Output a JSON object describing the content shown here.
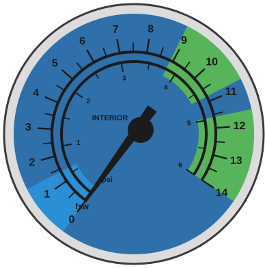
{
  "gauge": {
    "label_interior": "INTERIOR",
    "unit_outer": "fsw",
    "unit_inner": "psi",
    "outer_scale": {
      "unit": "fsw",
      "min": 0,
      "max": 14,
      "labels": [
        "0",
        "1",
        "2",
        "3",
        "4",
        "5",
        "6",
        "7",
        "8",
        "9",
        "10",
        "11",
        "12",
        "13",
        "14"
      ]
    },
    "inner_scale": {
      "unit": "psi",
      "min": 0,
      "max": 6,
      "labels": [
        "1",
        "2",
        "3",
        "4",
        "5",
        "6"
      ]
    },
    "needle_value_fsw": 0,
    "zones": [
      {
        "name": "low-zone",
        "from_fsw": 0,
        "to_fsw": 1.4,
        "color": "#2a8fd4"
      },
      {
        "name": "green-zone-upper",
        "from_fsw": 8.9,
        "to_fsw": 10.8,
        "color": "#58b45a"
      },
      {
        "name": "green-zone-lower",
        "from_fsw": 11.6,
        "to_fsw": 14,
        "color": "#58b45a"
      }
    ],
    "colors": {
      "face": "#2f6faa",
      "rim": "#dcdcdc",
      "rim_stroke": "#3b3b3b",
      "ink": "#1b1b1b"
    }
  }
}
